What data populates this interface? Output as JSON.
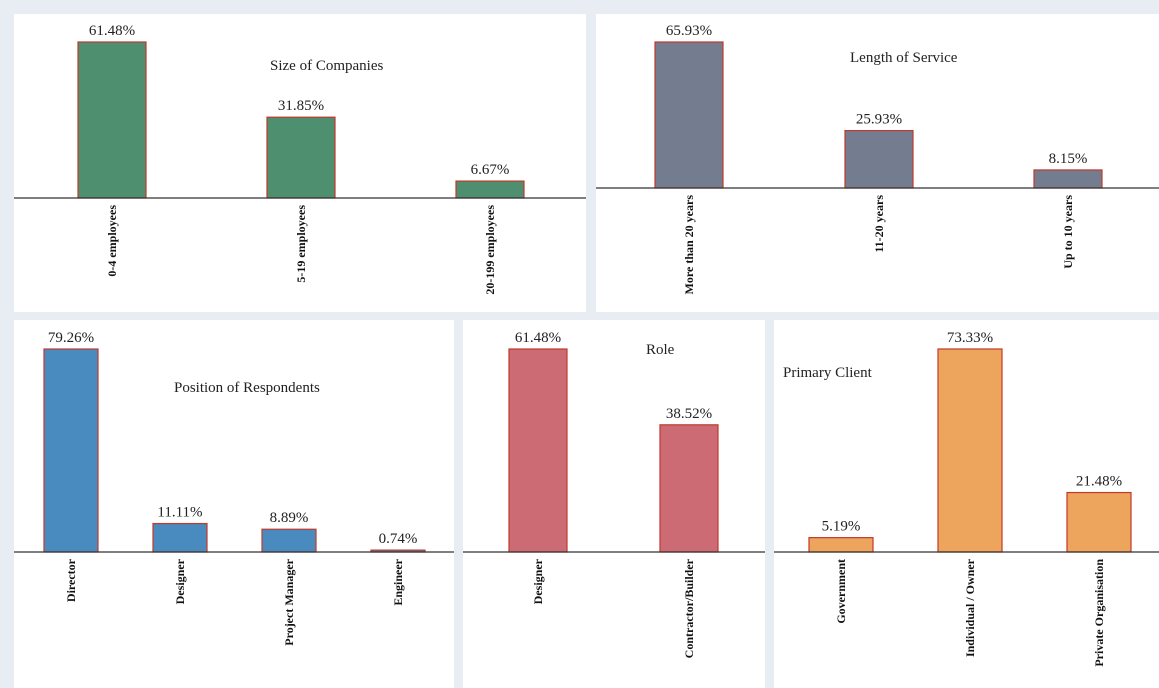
{
  "chart_data": [
    {
      "type": "bar",
      "title": "Size of Companies",
      "categories": [
        "0-4 employees",
        "5-19 employees",
        "20-199 employees"
      ],
      "values": [
        61.48,
        31.85,
        6.67
      ],
      "data_labels": [
        "61.48%",
        "31.85%",
        "6.67%"
      ],
      "ylim": [
        0,
        61.48
      ],
      "color": "#4d8f6e",
      "edge_color": "#c0392b"
    },
    {
      "type": "bar",
      "title": "Length of Service",
      "categories": [
        "More than 20 years",
        "11-20 years",
        "Up to 10 years"
      ],
      "values": [
        65.93,
        25.93,
        8.15
      ],
      "data_labels": [
        "65.93%",
        "25.93%",
        "8.15%"
      ],
      "ylim": [
        0,
        65.93
      ],
      "color": "#737d8f",
      "edge_color": "#c0392b"
    },
    {
      "type": "bar",
      "title": "Position of Respondents",
      "categories": [
        "Director",
        "Designer",
        "Project Manager",
        "Engineer"
      ],
      "values": [
        79.26,
        11.11,
        8.89,
        0.74
      ],
      "data_labels": [
        "79.26%",
        "11.11%",
        "8.89%",
        "0.74%"
      ],
      "ylim": [
        0,
        79.26
      ],
      "color": "#4a8bbf",
      "edge_color": "#c0392b"
    },
    {
      "type": "bar",
      "title": "Role",
      "categories": [
        "Designer",
        "Contractor/Builder"
      ],
      "values": [
        61.48,
        38.52
      ],
      "data_labels": [
        "61.48%",
        "38.52%"
      ],
      "ylim": [
        0,
        61.48
      ],
      "color": "#cc6b74",
      "edge_color": "#c0392b"
    },
    {
      "type": "bar",
      "title": "Primary Client",
      "categories": [
        "Government",
        "Individual / Owner",
        "Private Organisation"
      ],
      "values": [
        5.19,
        73.33,
        21.48
      ],
      "data_labels": [
        "5.19%",
        "73.33%",
        "21.48%"
      ],
      "ylim": [
        0,
        73.33
      ],
      "color": "#eda45c",
      "edge_color": "#c0392b"
    }
  ]
}
